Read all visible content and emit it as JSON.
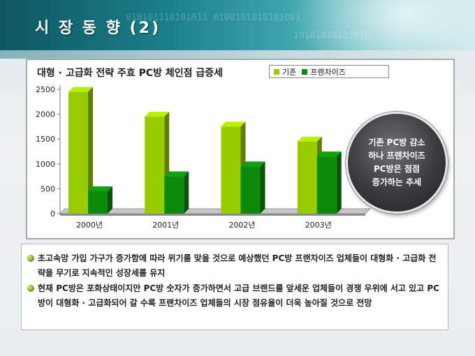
{
  "header": {
    "title": "시 장 동 향 (2)",
    "binary_lines": [
      "010101110101011 0100101010101001",
      "10101010101010"
    ]
  },
  "chart_data": {
    "type": "bar",
    "title": "대형 · 고급화 전략 주효 PC방 체인점 급증세",
    "categories": [
      "2000년",
      "2001년",
      "2002년",
      "2003년"
    ],
    "series": [
      {
        "name": "기존",
        "values": [
          2450,
          1950,
          1750,
          1450
        ],
        "color": "#99cc00"
      },
      {
        "name": "프렌차이즈",
        "values": [
          450,
          750,
          950,
          1150
        ],
        "color": "#0b8a0b"
      }
    ],
    "ylim": [
      0,
      2500
    ],
    "yticks": [
      0,
      500,
      1000,
      1500,
      2000,
      2500
    ],
    "legend_position": "top-right",
    "grid": false
  },
  "callout": {
    "text": "기존 PC방 감소\n하나 프렌차이즈\nPC방은 점점\n증가하는 추세"
  },
  "notes": [
    "초고속망 가입 가구가 증가함에 따라 위기를 맞을 것으로 예상했던 PC방 프랜차이즈 업체들이 대형화 · 고급화 전략을 무기로 지속적인 성장세를 유지",
    "현재 PC방은 포화상태이지만 PC방 숫자가 증가하면서 고급 브랜드를 앞세운 업체들이 경쟁 우위에 서고 있고 PC방이 대형화 · 고급화되어 갈 수록 프랜차이즈 업체들의 시장 점유율이 더욱 높아질 것으로 전망"
  ]
}
